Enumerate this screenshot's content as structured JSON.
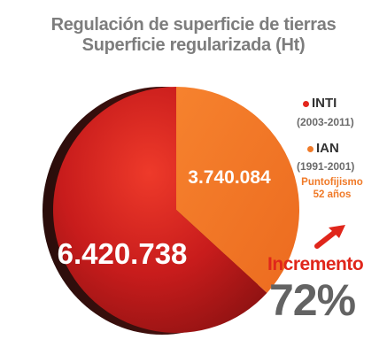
{
  "chart_data": {
    "type": "pie",
    "title": "Regulación de superficie de tierras",
    "subtitle": "Superficie regularizada (Ht)",
    "slices": [
      {
        "name": "INTI",
        "period": "(2003-2011)",
        "value": 6420738,
        "value_label": "6.420.738",
        "color": "#d21f1f"
      },
      {
        "name": "IAN",
        "period": "(1991-2001)",
        "value": 3740084,
        "value_label": "3.740.084",
        "color": "#f47a2a"
      }
    ],
    "ian_note": [
      "Puntofijismo",
      "52 años"
    ],
    "increase_label": "Incremento",
    "increase_value": "72%",
    "legend_position": "right"
  }
}
